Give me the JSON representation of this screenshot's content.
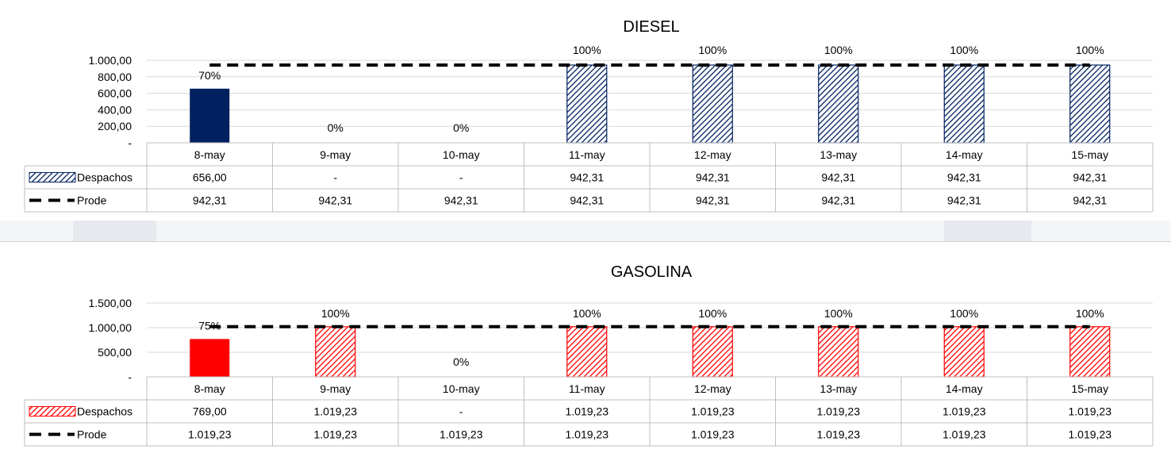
{
  "charts": [
    {
      "id": "diesel",
      "colors": {
        "bar_solid": "#002060",
        "bar_hatch": "#002060",
        "line": "#000000"
      },
      "chart_data": {
        "type": "bar",
        "title": "DIESEL",
        "categories": [
          "8-may",
          "9-may",
          "10-may",
          "11-may",
          "12-may",
          "13-may",
          "14-may",
          "15-may"
        ],
        "series": [
          {
            "name": "Despachos",
            "kind": "bar",
            "values": [
              656.0,
              0,
              0,
              942.31,
              942.31,
              942.31,
              942.31,
              942.31
            ],
            "display": [
              "656,00",
              "-",
              "-",
              "942,31",
              "942,31",
              "942,31",
              "942,31",
              "942,31"
            ]
          },
          {
            "name": "Prode",
            "kind": "line-dashed",
            "values": [
              942.31,
              942.31,
              942.31,
              942.31,
              942.31,
              942.31,
              942.31,
              942.31
            ],
            "display": [
              "942,31",
              "942,31",
              "942,31",
              "942,31",
              "942,31",
              "942,31",
              "942,31",
              "942,31"
            ]
          }
        ],
        "percent_labels": [
          "70%",
          "0%",
          "0%",
          "100%",
          "100%",
          "100%",
          "100%",
          "100%"
        ],
        "ylim": [
          0,
          1000
        ],
        "yticks": [
          0,
          200,
          400,
          600,
          800,
          1000
        ],
        "ytick_labels": [
          "-",
          "200,00",
          "400,00",
          "600,00",
          "800,00",
          "1.000,00"
        ],
        "legend_placement": "data-table"
      }
    },
    {
      "id": "gasolina",
      "colors": {
        "bar_solid": "#ff0000",
        "bar_hatch": "#ff0000",
        "line": "#000000"
      },
      "chart_data": {
        "type": "bar",
        "title": "GASOLINA",
        "categories": [
          "8-may",
          "9-may",
          "10-may",
          "11-may",
          "12-may",
          "13-may",
          "14-may",
          "15-may"
        ],
        "series": [
          {
            "name": "Despachos",
            "kind": "bar",
            "values": [
              769.0,
              1019.23,
              0,
              1019.23,
              1019.23,
              1019.23,
              1019.23,
              1019.23
            ],
            "display": [
              "769,00",
              "1.019,23",
              "-",
              "1.019,23",
              "1.019,23",
              "1.019,23",
              "1.019,23",
              "1.019,23"
            ]
          },
          {
            "name": "Prode",
            "kind": "line-dashed",
            "values": [
              1019.23,
              1019.23,
              1019.23,
              1019.23,
              1019.23,
              1019.23,
              1019.23,
              1019.23
            ],
            "display": [
              "1.019,23",
              "1.019,23",
              "1.019,23",
              "1.019,23",
              "1.019,23",
              "1.019,23",
              "1.019,23",
              "1.019,23"
            ]
          }
        ],
        "percent_labels": [
          "75%",
          "100%",
          "0%",
          "100%",
          "100%",
          "100%",
          "100%",
          "100%"
        ],
        "ylim": [
          0,
          1500
        ],
        "yticks": [
          0,
          500,
          1000,
          1500
        ],
        "ytick_labels": [
          "-",
          "500,00",
          "1.000,00",
          "1.500,00"
        ],
        "legend_placement": "data-table"
      }
    }
  ]
}
